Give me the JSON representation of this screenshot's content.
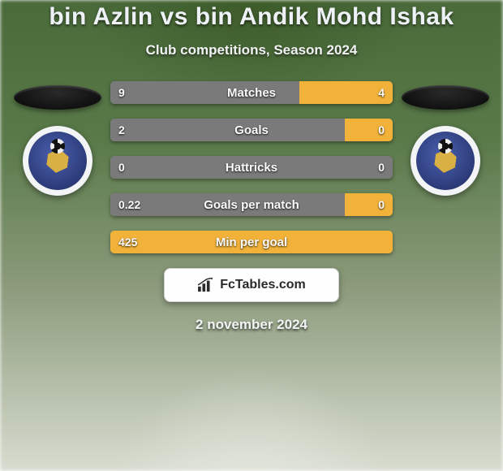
{
  "title": "bin Azlin vs bin Andik Mohd Ishak",
  "subtitle": "Club competitions, Season 2024",
  "date_text": "2 november 2024",
  "branding_text": "FcTables.com",
  "colors": {
    "left_bar": "#7a7a7a",
    "right_bar": "#f2b23a",
    "neutral_bar": "#7a7a7a"
  },
  "players": {
    "left": {
      "name": "bin Azlin",
      "crest_name": "club-crest-a"
    },
    "right": {
      "name": "bin Andik Mohd Ishak",
      "crest_name": "club-crest-b"
    }
  },
  "stats": [
    {
      "label": "Matches",
      "left_value": "9",
      "right_value": "4",
      "left_pct": 67,
      "right_pct": 33
    },
    {
      "label": "Goals",
      "left_value": "2",
      "right_value": "0",
      "left_pct": 83,
      "right_pct": 17
    },
    {
      "label": "Hattricks",
      "left_value": "0",
      "right_value": "0",
      "left_pct": 100,
      "right_pct": 0
    },
    {
      "label": "Goals per match",
      "left_value": "0.22",
      "right_value": "0",
      "left_pct": 83,
      "right_pct": 17
    },
    {
      "label": "Min per goal",
      "left_value": "425",
      "right_value": "",
      "left_pct": 100,
      "right_pct": 0,
      "full_color": "right"
    }
  ]
}
